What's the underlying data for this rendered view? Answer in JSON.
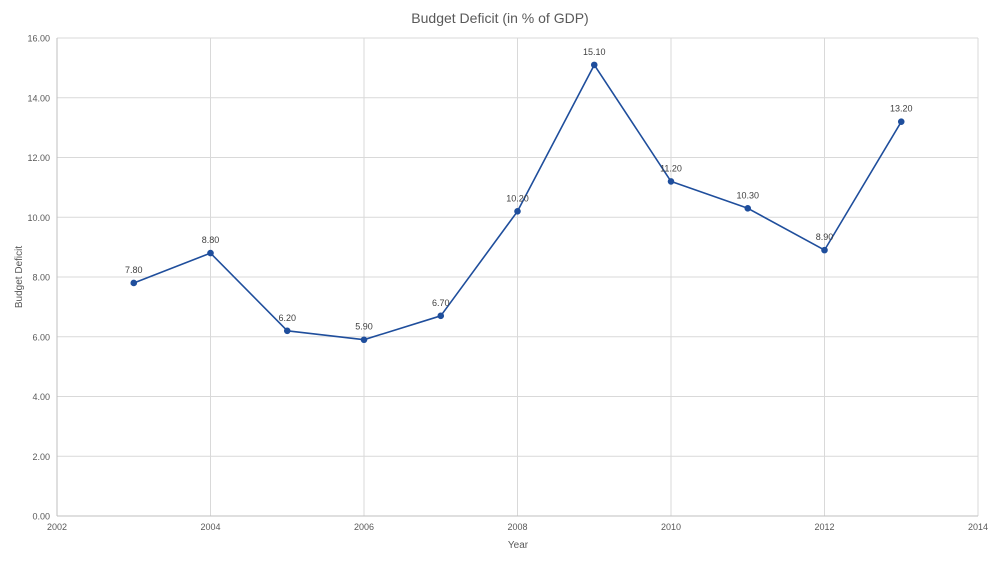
{
  "chart_data": {
    "type": "scatter",
    "title": "Budget Deficit (in % of GDP)",
    "xlabel": "Year",
    "ylabel": "Budget Deficit",
    "xlim": [
      2002,
      2014
    ],
    "ylim": [
      0,
      16
    ],
    "x_ticks": [
      2002,
      2004,
      2006,
      2008,
      2010,
      2012,
      2014
    ],
    "y_ticks": [
      0,
      2,
      4,
      6,
      8,
      10,
      12,
      14,
      16
    ],
    "y_tick_labels": [
      "0.00",
      "2.00",
      "4.00",
      "6.00",
      "8.00",
      "10.00",
      "12.00",
      "14.00",
      "16.00"
    ],
    "grid": true,
    "legend": "none",
    "series": [
      {
        "color": "#1f4e9c",
        "x": [
          2003,
          2004,
          2005,
          2006,
          2007,
          2008,
          2009,
          2010,
          2011,
          2012,
          2013
        ],
        "y": [
          7.8,
          8.8,
          6.2,
          5.9,
          6.7,
          10.2,
          15.1,
          11.2,
          10.3,
          8.9,
          13.2
        ],
        "labels": [
          "7.80",
          "8.80",
          "6.20",
          "5.90",
          "6.70",
          "10.20",
          "15.10",
          "11.20",
          "10.30",
          "8.90",
          "13.20"
        ]
      }
    ]
  }
}
